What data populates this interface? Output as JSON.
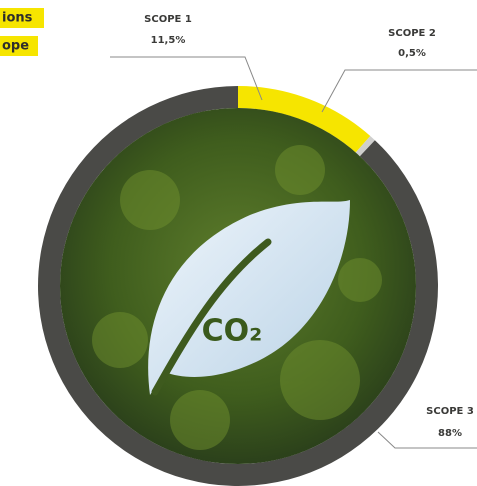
{
  "heading_fragments": [
    "ions",
    "ope"
  ],
  "chart_data": {
    "type": "donut",
    "categories": [
      "SCOPE 1",
      "SCOPE 2",
      "SCOPE 3"
    ],
    "values": [
      11.5,
      0.5,
      88
    ],
    "value_labels": [
      "11,5%",
      "0,5%",
      "88%"
    ],
    "colors": [
      "#f6e500",
      "#cfcfcd",
      "#4a4a47"
    ],
    "center_label": "CO₂"
  }
}
